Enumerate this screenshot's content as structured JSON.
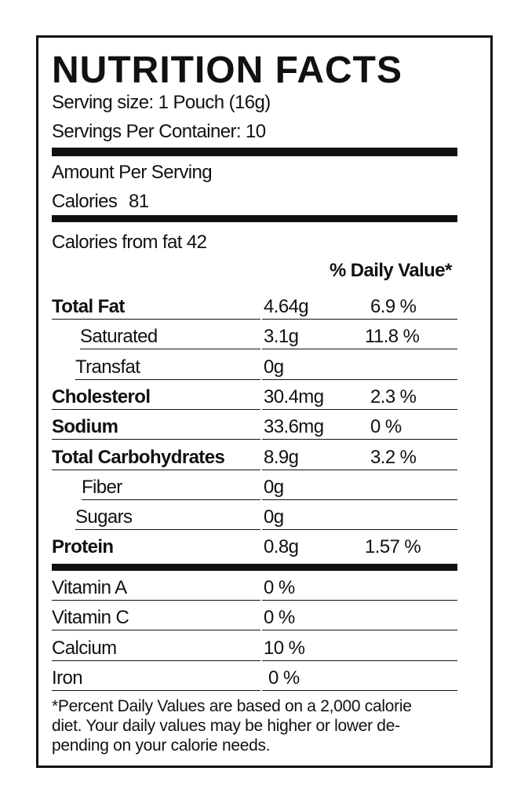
{
  "header": {
    "title": "NUTRITION FACTS",
    "serving_size": "Serving size: 1 Pouch (16g)",
    "servings_per_container": "Servings Per Container: 10"
  },
  "amount_per_serving": "Amount Per Serving",
  "calories": {
    "label": "Calories",
    "value": "81"
  },
  "calories_from_fat": "Calories from fat 42",
  "daily_value_header": "% Daily Value*",
  "nutrients": [
    {
      "name": "Total Fat",
      "amount": "4.64g",
      "dv": "6.9 %"
    },
    {
      "name": "Saturated",
      "amount": "3.1g",
      "dv": "11.8 %"
    },
    {
      "name": "Transfat",
      "amount": "0g"
    },
    {
      "name": "Cholesterol",
      "amount": "30.4mg",
      "dv": "2.3 %"
    },
    {
      "name": "Sodium",
      "amount": "33.6mg",
      "dv": "0 %"
    },
    {
      "name": "Total Carbohydrates",
      "amount": "8.9g",
      "dv": "3.2 %"
    },
    {
      "name": "Fiber",
      "amount": "0g"
    },
    {
      "name": "Sugars",
      "amount": "0g"
    },
    {
      "name": "Protein",
      "amount": "0.8g",
      "dv": "1.57 %"
    }
  ],
  "vitamins": [
    {
      "name": "Vitamin A",
      "amount": "0 %"
    },
    {
      "name": "Vitamin C",
      "amount": "0 %"
    },
    {
      "name": "Calcium",
      "amount": "10 %"
    },
    {
      "name": "Iron",
      "amount": "0 %"
    }
  ],
  "footnote": [
    "*Percent Daily Values are based on a 2,000 calorie",
    "diet. Your daily values may be higher or lower de-",
    "pending on your calorie needs."
  ]
}
